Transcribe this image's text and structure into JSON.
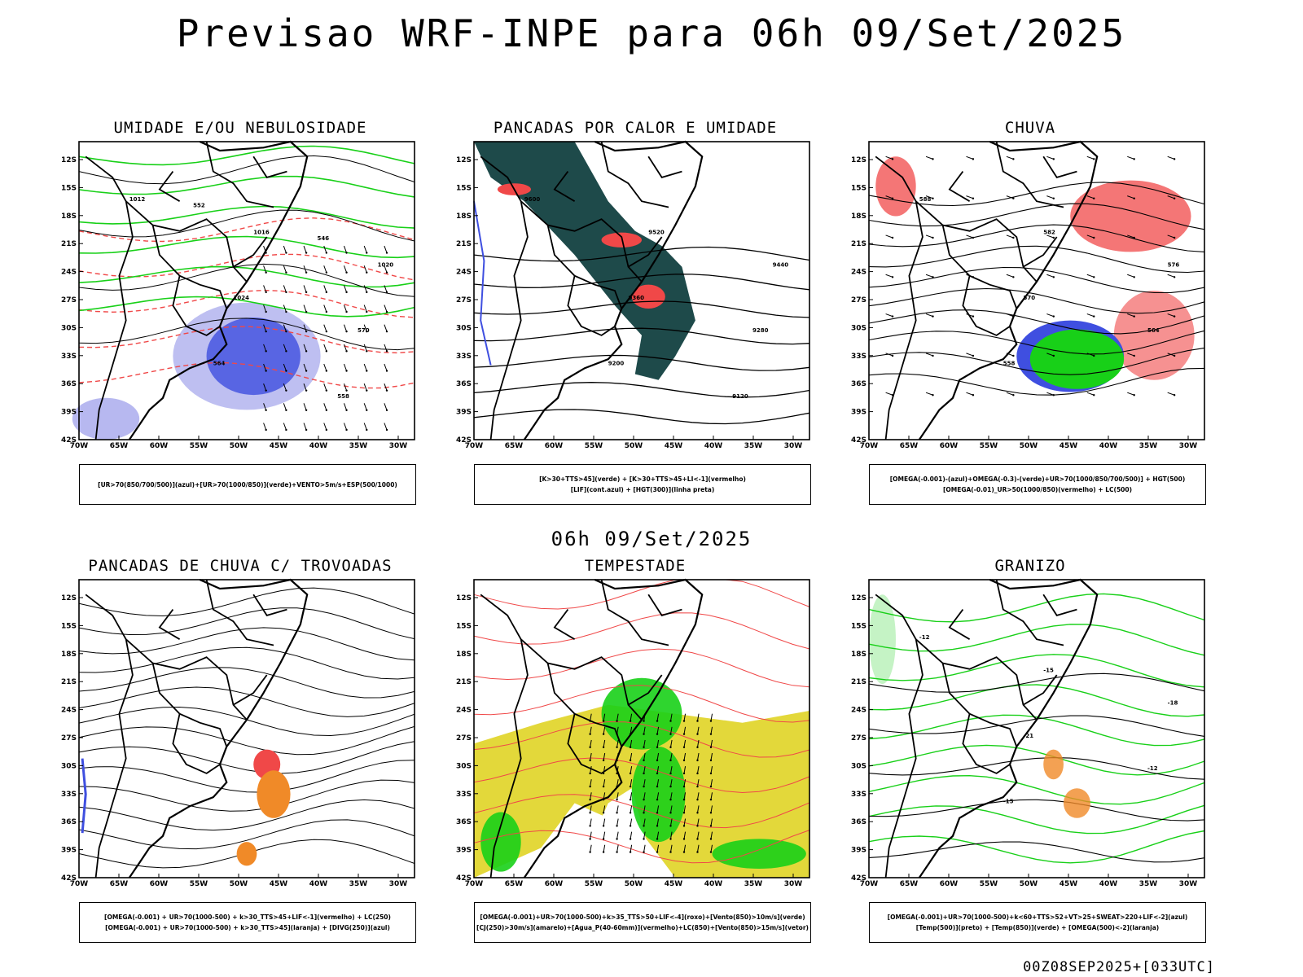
{
  "title": "Previsao WRF-INPE  para 06h 09/Set/2025",
  "middle_title": "06h 09/Set/2025",
  "footer": "00Z08SEP2025+[033UTC]",
  "lat_ticks": [
    "12S",
    "15S",
    "18S",
    "21S",
    "24S",
    "27S",
    "30S",
    "33S",
    "36S",
    "39S",
    "42S"
  ],
  "lon_ticks": [
    "70W",
    "65W",
    "60W",
    "55W",
    "50W",
    "45W",
    "40W",
    "35W",
    "30W"
  ],
  "colors": {
    "blue": "#3f4fe0",
    "light_purple": "#b7b8f0",
    "green": "#18d018",
    "red": "#f04848",
    "dark_teal": "#1e4a4a",
    "yellow": "#e3d83a",
    "orange": "#f08a28",
    "black": "#000000"
  },
  "panels": [
    {
      "id": "umidade",
      "title": "UMIDADE E/OU NEBULOSIDADE",
      "legend": [
        "[UR>70(850/700/500)](azul)+[UR>70(1000/850)](verde)+VENTO>5m/s+ESP(500/1000)"
      ],
      "contour_labels": [
        "1012",
        "1016",
        "1020",
        "1024",
        "570",
        "564",
        "558",
        "552",
        "546"
      ]
    },
    {
      "id": "pancadas-calor",
      "title": "PANCADAS POR CALOR E UMIDADE",
      "legend": [
        "[K>30+TTS>45](verde) + [K>30+TTS>45+LI<-1](vermelho)",
        "[LIF](cont.azul) + [HGT(300)](linha preta)"
      ],
      "contour_labels": [
        "9600",
        "9520",
        "9440",
        "9360",
        "9280",
        "9200",
        "9120"
      ]
    },
    {
      "id": "chuva",
      "title": "CHUVA",
      "legend": [
        "[OMEGA(-0.001)-(azul)+OMEGA(-0.3)-(verde)+UR>70(1000/850/700/500)] + HGT(500)",
        "[OMEGA(-0.01)_UR>50(1000/850)(vermelho) + LC(500)"
      ],
      "contour_labels": [
        "588",
        "582",
        "576",
        "570",
        "564",
        "558"
      ]
    },
    {
      "id": "pancadas-trovoadas",
      "title": "PANCADAS DE CHUVA C/ TROVOADAS",
      "legend": [
        "[OMEGA(-0.001) + UR>70(1000-500) + k>30_TTS>45+LIF<-1](vermelho) + LC(250)",
        "[OMEGA(-0.001) + UR>70(1000-500) + k>30_TTS>45](laranja) + [DIVG(250)](azul)"
      ],
      "contour_labels": []
    },
    {
      "id": "tempestade",
      "title": "TEMPESTADE",
      "legend": [
        "[OMEGA(-0.001)+UR>70(1000-500)+k>35_TTS>50+LIF<-4](roxo)+[Vento(850)>10m/s](verde)",
        "[CJ(250)>30m/s](amarelo)+[Agua_P(40-60mm)](vermelho)+LC(850)+[Vento(850)>15m/s](vetor)"
      ],
      "contour_labels": []
    },
    {
      "id": "granizo",
      "title": "GRANIZO",
      "legend": [
        "[OMEGA(-0.001)+UR>70(1000-500)+k<60+TTS>52+VT>25+SWEAT>220+LIF<-2](azul)",
        "[Temp(500)](preto) + [Temp(850)](verde) + [OMEGA(500)<-2](laranja)"
      ],
      "contour_labels": [
        "-12",
        "-15",
        "-18",
        "-21",
        "-12",
        "-15"
      ]
    }
  ]
}
